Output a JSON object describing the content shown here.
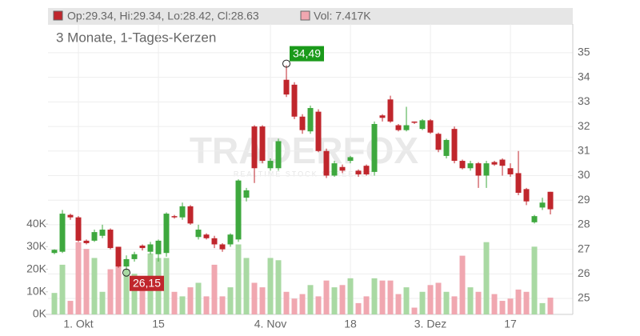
{
  "chart_data": {
    "type": "candlestick",
    "info_price": "Op:29.34, Hi:29.34, Lo:28.42, Cl:28.63",
    "info_volume": "Vol: 7.417K",
    "subtitle": "3 Monate, 1-Tages-Kerzen",
    "watermark": "TRADERFOX",
    "watermark_sub": "REALTIME STOCK SCREENER",
    "categories": [
      null,
      null,
      null,
      "1. Okt",
      null,
      null,
      null,
      null,
      null,
      null,
      null,
      null,
      null,
      "15",
      null,
      null,
      null,
      null,
      null,
      null,
      null,
      null,
      null,
      null,
      null,
      null,
      null,
      "4. Nov",
      null,
      null,
      null,
      null,
      null,
      null,
      null,
      null,
      null,
      "18",
      null,
      null,
      null,
      null,
      null,
      null,
      null,
      null,
      null,
      "3. Dez",
      null,
      null,
      null,
      null,
      null,
      null,
      null,
      null,
      null,
      "17",
      null,
      null,
      null,
      null,
      null
    ],
    "open": [
      26.85,
      26.9,
      28.4,
      28.3,
      27.35,
      27.35,
      27.55,
      27.8,
      27.1,
      26.3,
      26.6,
      27.15,
      26.9,
      26.8,
      26.85,
      28.35,
      28.3,
      28.75,
      27.5,
      27.6,
      27.45,
      27.2,
      27.2,
      27.4,
      29.1,
      32.0,
      32.0,
      30.3,
      30.3,
      33.9,
      33.7,
      32.4,
      31.8,
      32.6,
      31.0,
      30.0,
      30.35,
      30.6,
      30.2,
      30.4,
      30.15,
      32.45,
      33.1,
      32.05,
      31.85,
      32.2,
      31.9,
      32.25,
      31.7,
      30.8,
      31.9,
      30.6,
      30.3,
      30.5,
      30.0,
      30.55,
      30.65,
      30.3,
      30.1,
      29.45,
      28.1,
      28.7,
      29.34
    ],
    "high": [
      27.0,
      28.6,
      28.45,
      28.35,
      27.4,
      27.8,
      28.0,
      27.85,
      27.1,
      26.75,
      26.9,
      27.2,
      27.3,
      27.4,
      28.5,
      28.4,
      28.9,
      28.8,
      28.0,
      27.65,
      27.55,
      27.25,
      27.65,
      29.85,
      29.5,
      32.05,
      32.05,
      30.7,
      31.5,
      34.49,
      33.8,
      32.5,
      32.85,
      32.7,
      31.1,
      30.6,
      30.45,
      30.8,
      30.25,
      30.45,
      32.2,
      32.5,
      33.25,
      32.1,
      32.8,
      32.2,
      32.3,
      32.3,
      31.75,
      31.5,
      32.0,
      30.65,
      30.6,
      30.55,
      30.6,
      30.6,
      30.7,
      30.5,
      31.0,
      29.5,
      28.4,
      29.1,
      29.34
    ],
    "low": [
      26.8,
      26.85,
      28.2,
      27.3,
      27.2,
      27.3,
      27.45,
      27.0,
      26.25,
      26.15,
      26.5,
      26.95,
      26.8,
      26.5,
      26.7,
      28.25,
      28.2,
      28.0,
      27.4,
      27.4,
      27.05,
      26.9,
      27.1,
      27.3,
      28.95,
      29.7,
      30.5,
      30.2,
      30.2,
      33.2,
      32.3,
      31.7,
      31.7,
      30.95,
      29.9,
      29.95,
      30.1,
      30.5,
      29.95,
      30.0,
      30.0,
      32.2,
      32.15,
      31.8,
      31.8,
      32.1,
      31.85,
      31.7,
      30.95,
      30.7,
      30.5,
      30.25,
      30.2,
      29.5,
      29.5,
      30.4,
      30.0,
      29.95,
      29.2,
      28.8,
      28.05,
      28.6,
      28.42
    ],
    "close": [
      26.98,
      28.45,
      28.3,
      27.35,
      27.25,
      27.7,
      27.8,
      27.05,
      26.3,
      26.6,
      26.8,
      27.05,
      27.2,
      27.35,
      28.45,
      28.3,
      28.75,
      28.05,
      27.8,
      27.45,
      27.2,
      27.0,
      27.6,
      29.8,
      29.4,
      30.3,
      30.6,
      30.6,
      31.4,
      33.3,
      32.4,
      31.85,
      32.75,
      31.0,
      30.0,
      30.5,
      30.2,
      30.75,
      30.05,
      30.05,
      32.1,
      32.35,
      32.2,
      31.85,
      32.05,
      32.15,
      32.25,
      31.75,
      31.05,
      31.45,
      30.6,
      30.3,
      30.5,
      30.0,
      30.5,
      30.45,
      30.4,
      30.05,
      29.3,
      28.95,
      28.35,
      28.9,
      28.63
    ],
    "volume": [
      9.5,
      22,
      6,
      32,
      29,
      25,
      10,
      20,
      30,
      20,
      18,
      15,
      27,
      25,
      25,
      10,
      8,
      12,
      14,
      8,
      22,
      8,
      12,
      31,
      25,
      14,
      12,
      25,
      24,
      10,
      7,
      9,
      13,
      8,
      15,
      12,
      13,
      16,
      5,
      8,
      16,
      15,
      15,
      9,
      12,
      3,
      10,
      13,
      14,
      10,
      8,
      26,
      12,
      10,
      32,
      9,
      6,
      7,
      11,
      10,
      30,
      5,
      7.417
    ],
    "up_color": "#3ea83e",
    "down_color": "#c0262c",
    "up_volume_color": "#a9d9a3",
    "down_volume_color": "#f0a7b0",
    "ylim": [
      24.35,
      36.17
    ],
    "yticks": [
      25,
      26,
      27,
      28,
      29,
      30,
      31,
      32,
      33,
      34,
      35
    ],
    "y2lim": [
      0,
      45
    ],
    "y2ticks": [
      {
        "value": 0,
        "label": "0K"
      },
      {
        "value": 10,
        "label": "10K"
      },
      {
        "value": 20,
        "label": "20K"
      },
      {
        "value": 30,
        "label": "30K"
      },
      {
        "value": 40,
        "label": "40K"
      }
    ],
    "grid": true,
    "annotations": [
      {
        "label": "34,49",
        "value": 34.49,
        "color": "#1a9a1a"
      },
      {
        "label": "26,15",
        "value": 26.15,
        "color": "#c0262c"
      }
    ]
  }
}
